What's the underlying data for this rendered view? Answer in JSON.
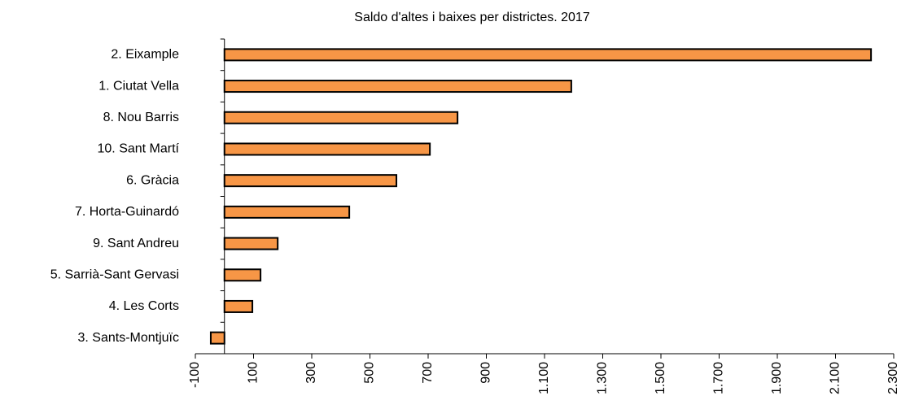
{
  "chart_data": {
    "type": "hbar",
    "title": "Saldo d'altes i baixes per districtes. 2017",
    "categories": [
      "2. Eixample",
      "1. Ciutat Vella",
      "8. Nou Barris",
      "10. Sant Martí",
      "6. Gràcia",
      "7. Horta-Guinardó",
      "9. Sant Andreu",
      "5. Sarrià-Sant Gervasi",
      "4. Les Corts",
      "3. Sants-Montjuïc"
    ],
    "values": [
      2222,
      1192,
      801,
      706,
      591,
      429,
      183,
      124,
      96,
      -47
    ],
    "color": "#f79646",
    "xlim": [
      -100,
      2300
    ],
    "xticks": [
      -100,
      100,
      300,
      500,
      700,
      900,
      {
        "value": 1100,
        "label": "1.100"
      },
      {
        "value": 1300,
        "label": "1.300"
      },
      {
        "value": 1500,
        "label": "1.500"
      },
      {
        "value": 1700,
        "label": "1.700"
      },
      {
        "value": 1900,
        "label": "1.900"
      },
      {
        "value": 2100,
        "label": "2.100"
      },
      {
        "value": 2300,
        "label": "2.300"
      }
    ]
  }
}
